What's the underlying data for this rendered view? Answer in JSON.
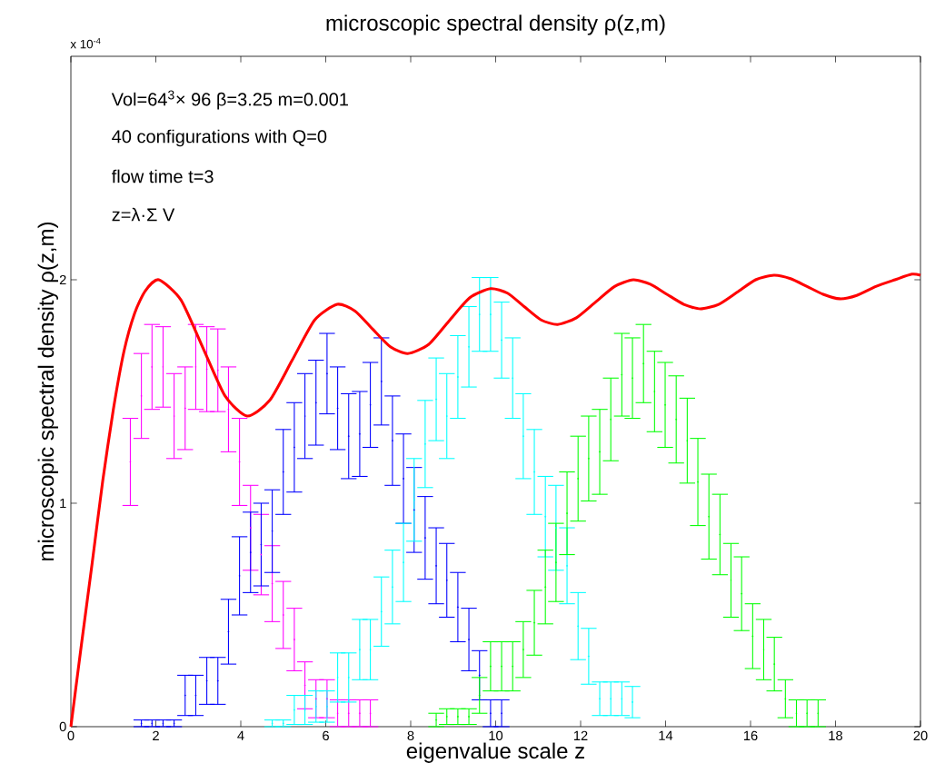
{
  "chart_data": {
    "type": "scatter",
    "title": "microscopic spectral density ρ(z,m)",
    "xlabel": "eigenvalue scale z",
    "ylabel": "microscopic spectral density   ρ(z,m)",
    "annotations": [
      "x 10$^{-4}$",
      "Vol=64$^{3}$× 96   β=3.25   m=0.001",
      "40 configurations with Q=0",
      "flow time t=3",
      "z=λ·Σ V"
    ],
    "xlim": [
      0,
      20
    ],
    "ylim": [
      0,
      3
    ],
    "xticks": [
      0,
      2,
      4,
      6,
      8,
      10,
      12,
      14,
      16,
      18,
      20
    ],
    "yticks": [
      0,
      1,
      2
    ],
    "series": [
      {
        "color": "#ff00ff",
        "x": [
          1.4,
          1.66,
          1.91,
          2.17,
          2.43,
          2.69,
          2.94,
          3.2,
          3.46,
          3.71,
          3.97,
          4.23,
          4.48,
          4.74,
          5.0,
          5.26,
          5.51,
          5.77,
          6.03,
          6.28,
          6.54,
          6.8,
          7.05
        ],
        "values": [
          1.185,
          1.48,
          1.61,
          1.61,
          1.39,
          1.425,
          1.61,
          1.6,
          1.595,
          1.42,
          1.185,
          0.89,
          0.77,
          0.64,
          0.5,
          0.39,
          0.185,
          0.125,
          0.125,
          0.06,
          0.06,
          0.06,
          0.06
        ],
        "errors": [
          0.195,
          0.19,
          0.19,
          0.18,
          0.19,
          0.185,
          0.19,
          0.19,
          0.185,
          0.19,
          0.195,
          0.19,
          0.18,
          0.17,
          0.15,
          0.14,
          0.105,
          0.085,
          0.085,
          0.06,
          0.06,
          0.06,
          0.06
        ]
      },
      {
        "color": "#0000ff",
        "x": [
          1.66,
          1.91,
          2.17,
          2.43,
          2.69,
          2.94,
          3.2,
          3.46,
          3.71,
          3.97,
          4.23,
          4.48,
          4.74,
          5.0,
          5.26,
          5.51,
          5.77,
          6.03,
          6.28,
          6.54,
          6.8,
          7.05,
          7.31,
          7.57,
          7.83,
          8.08,
          8.34,
          8.6,
          8.85,
          9.11,
          9.37,
          9.62,
          9.88,
          10.14
        ],
        "values": [
          0.015,
          0.015,
          0.015,
          0.015,
          0.14,
          0.14,
          0.205,
          0.205,
          0.425,
          0.675,
          0.78,
          0.815,
          0.875,
          1.14,
          1.25,
          1.39,
          1.45,
          1.58,
          1.425,
          1.3,
          1.31,
          1.44,
          1.545,
          1.28,
          1.11,
          0.97,
          0.845,
          0.72,
          0.655,
          0.535,
          0.39,
          0.23,
          0.06,
          0.06
        ],
        "errors": [
          0.015,
          0.015,
          0.015,
          0.015,
          0.09,
          0.09,
          0.105,
          0.105,
          0.145,
          0.175,
          0.18,
          0.185,
          0.185,
          0.19,
          0.2,
          0.19,
          0.19,
          0.18,
          0.185,
          0.19,
          0.19,
          0.19,
          0.195,
          0.2,
          0.2,
          0.19,
          0.185,
          0.17,
          0.165,
          0.155,
          0.14,
          0.11,
          0.06,
          0.06
        ]
      },
      {
        "color": "#00ffff",
        "x": [
          4.74,
          5.0,
          5.26,
          5.51,
          5.77,
          6.03,
          6.28,
          6.54,
          6.8,
          7.05,
          7.31,
          7.57,
          7.83,
          8.08,
          8.34,
          8.6,
          8.85,
          9.11,
          9.37,
          9.62,
          9.88,
          10.14,
          10.4,
          10.65,
          10.91,
          11.17,
          11.42,
          11.68,
          11.94,
          12.19,
          12.45,
          12.71,
          12.97,
          13.22
        ],
        "values": [
          0.015,
          0.015,
          0.075,
          0.075,
          0.09,
          0.09,
          0.22,
          0.22,
          0.345,
          0.345,
          0.515,
          0.625,
          0.735,
          1.015,
          1.265,
          1.465,
          1.39,
          1.565,
          1.7,
          1.845,
          1.845,
          1.73,
          1.56,
          1.3,
          1.14,
          0.94,
          0.89,
          0.72,
          0.45,
          0.315,
          0.125,
          0.125,
          0.125,
          0.11
        ],
        "errors": [
          0.015,
          0.015,
          0.065,
          0.065,
          0.07,
          0.07,
          0.11,
          0.11,
          0.135,
          0.135,
          0.155,
          0.165,
          0.175,
          0.185,
          0.195,
          0.185,
          0.19,
          0.185,
          0.18,
          0.165,
          0.165,
          0.17,
          0.18,
          0.19,
          0.19,
          0.18,
          0.19,
          0.17,
          0.15,
          0.125,
          0.075,
          0.075,
          0.075,
          0.07
        ]
      },
      {
        "color": "#00ff00",
        "x": [
          8.6,
          8.85,
          9.11,
          9.37,
          9.62,
          9.88,
          10.14,
          10.4,
          10.65,
          10.91,
          11.17,
          11.42,
          11.68,
          11.94,
          12.19,
          12.45,
          12.71,
          12.97,
          13.22,
          13.48,
          13.74,
          13.99,
          14.25,
          14.51,
          14.76,
          15.02,
          15.28,
          15.54,
          15.79,
          16.05,
          16.31,
          16.56,
          16.82,
          17.08,
          17.33,
          17.59
        ],
        "values": [
          0.03,
          0.045,
          0.045,
          0.045,
          0.14,
          0.27,
          0.27,
          0.27,
          0.345,
          0.465,
          0.625,
          0.735,
          0.955,
          1.11,
          1.2,
          1.23,
          1.375,
          1.575,
          1.56,
          1.625,
          1.5,
          1.44,
          1.375,
          1.28,
          1.095,
          0.94,
          0.86,
          0.655,
          0.595,
          0.405,
          0.345,
          0.28,
          0.125,
          0.06,
          0.06,
          0.06
        ],
        "errors": [
          0.03,
          0.035,
          0.035,
          0.035,
          0.08,
          0.11,
          0.11,
          0.11,
          0.125,
          0.145,
          0.165,
          0.175,
          0.185,
          0.19,
          0.19,
          0.19,
          0.185,
          0.185,
          0.18,
          0.175,
          0.18,
          0.19,
          0.195,
          0.19,
          0.195,
          0.19,
          0.18,
          0.165,
          0.165,
          0.145,
          0.135,
          0.12,
          0.085,
          0.06,
          0.06,
          0.06
        ]
      },
      {
        "type": "line",
        "color": "#ff0000",
        "x": [
          0,
          0.25,
          0.5,
          0.75,
          1.0,
          1.25,
          1.5,
          1.75,
          2.07,
          2.59,
          3.11,
          3.63,
          4.15,
          4.68,
          5.21,
          5.74,
          6.27,
          6.69,
          7.1,
          7.52,
          7.93,
          8.42,
          8.9,
          9.39,
          9.88,
          10.28,
          10.67,
          11.07,
          11.46,
          11.9,
          12.35,
          12.8,
          13.24,
          13.64,
          14.03,
          14.43,
          14.82,
          15.25,
          15.69,
          16.12,
          16.55,
          16.94,
          17.33,
          17.71,
          18.1,
          18.5,
          18.95,
          19.4,
          19.8,
          20
        ],
        "values": [
          0,
          0.37,
          0.73,
          1.1,
          1.42,
          1.68,
          1.85,
          1.95,
          2.0,
          1.91,
          1.695,
          1.48,
          1.39,
          1.46,
          1.64,
          1.82,
          1.89,
          1.86,
          1.78,
          1.7,
          1.67,
          1.71,
          1.815,
          1.92,
          1.96,
          1.94,
          1.88,
          1.82,
          1.8,
          1.83,
          1.9,
          1.97,
          2.0,
          1.98,
          1.935,
          1.89,
          1.87,
          1.89,
          1.945,
          2.0,
          2.02,
          2.005,
          1.97,
          1.935,
          1.915,
          1.93,
          1.97,
          2.0,
          2.025,
          2.02
        ]
      }
    ]
  }
}
